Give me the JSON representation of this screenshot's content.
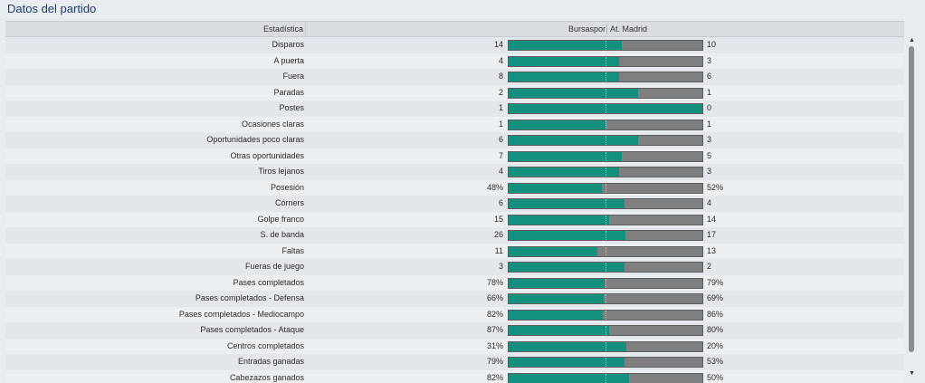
{
  "title": "Datos del partido",
  "header": {
    "stat": "Estadística",
    "home": "Bursaspor",
    "away": "At. Madrid"
  },
  "colors": {
    "home_bar": "#13917e",
    "away_bar": "#7f7f7f",
    "title": "#1f3f6a"
  },
  "rows": [
    {
      "label": "Disparos",
      "home": "14",
      "away": "10",
      "home_share": 0.583
    },
    {
      "label": "A puerta",
      "home": "4",
      "away": "3",
      "home_share": 0.571
    },
    {
      "label": "Fuera",
      "home": "8",
      "away": "6",
      "home_share": 0.571
    },
    {
      "label": "Paradas",
      "home": "2",
      "away": "1",
      "home_share": 0.667
    },
    {
      "label": "Postes",
      "home": "1",
      "away": "0",
      "home_share": 1.0
    },
    {
      "label": "Ocasiones claras",
      "home": "1",
      "away": "1",
      "home_share": 0.5
    },
    {
      "label": "Oportunidades poco claras",
      "home": "6",
      "away": "3",
      "home_share": 0.667
    },
    {
      "label": "Otras oportunidades",
      "home": "7",
      "away": "5",
      "home_share": 0.583
    },
    {
      "label": "Tiros lejanos",
      "home": "4",
      "away": "3",
      "home_share": 0.571
    },
    {
      "label": "Posesión",
      "home": "48%",
      "away": "52%",
      "home_share": 0.48
    },
    {
      "label": "Córners",
      "home": "6",
      "away": "4",
      "home_share": 0.6
    },
    {
      "label": "Golpe franco",
      "home": "15",
      "away": "14",
      "home_share": 0.517
    },
    {
      "label": "S. de banda",
      "home": "26",
      "away": "17",
      "home_share": 0.605
    },
    {
      "label": "Faltas",
      "home": "11",
      "away": "13",
      "home_share": 0.458
    },
    {
      "label": "Fueras de juego",
      "home": "3",
      "away": "2",
      "home_share": 0.6
    },
    {
      "label": "Pases completados",
      "home": "78%",
      "away": "79%",
      "home_share": 0.497
    },
    {
      "label": "Pases completados - Defensa",
      "home": "66%",
      "away": "69%",
      "home_share": 0.489
    },
    {
      "label": "Pases completados - Mediocampo",
      "home": "82%",
      "away": "86%",
      "home_share": 0.488
    },
    {
      "label": "Pases completados - Ataque",
      "home": "87%",
      "away": "80%",
      "home_share": 0.521
    },
    {
      "label": "Centros completados",
      "home": "31%",
      "away": "20%",
      "home_share": 0.608
    },
    {
      "label": "Entradas ganadas",
      "home": "79%",
      "away": "53%",
      "home_share": 0.598
    },
    {
      "label": "Cabezazos ganados",
      "home": "82%",
      "away": "50%",
      "home_share": 0.621
    }
  ]
}
